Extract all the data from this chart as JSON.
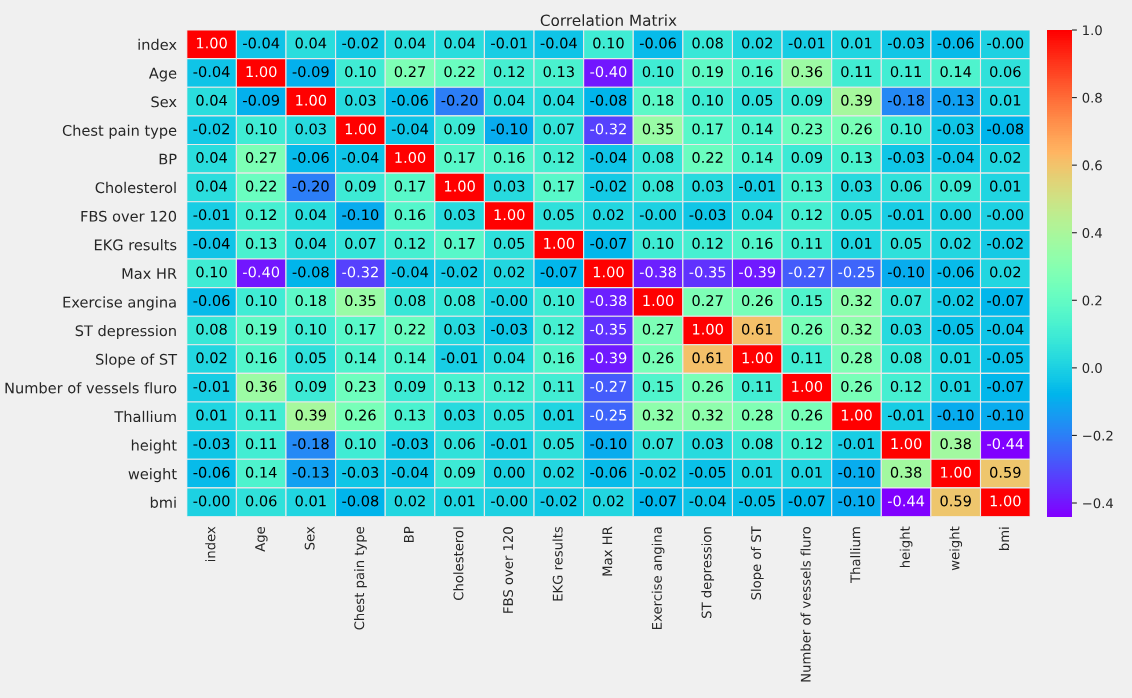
{
  "chart_data": {
    "type": "heatmap",
    "title": "Correlation Matrix",
    "categories": [
      "index",
      "Age",
      "Sex",
      "Chest pain type",
      "BP",
      "Cholesterol",
      "FBS over 120",
      "EKG results",
      "Max HR",
      "Exercise angina",
      "ST depression",
      "Slope of ST",
      "Number of vessels fluro",
      "Thallium",
      "height",
      "weight",
      "bmi"
    ],
    "y_categories": [
      "index",
      "Age",
      "Sex",
      "Chest pain type",
      "BP",
      "Cholesterol",
      "FBS over 120",
      "EKG results",
      "Max HR",
      "Exercise angina",
      "ST depression",
      "Slope of ST",
      "Number of vessels fluro",
      "Thallium",
      "height",
      "weight",
      "bmi"
    ],
    "cells": [
      [
        1.0,
        -0.04,
        0.04,
        -0.02,
        0.04,
        0.04,
        -0.01,
        -0.04,
        0.1,
        -0.06,
        0.08,
        0.02,
        -0.01,
        0.01,
        -0.03,
        -0.06,
        -0.0
      ],
      [
        -0.04,
        1.0,
        -0.09,
        0.1,
        0.27,
        0.22,
        0.12,
        0.13,
        -0.4,
        0.1,
        0.19,
        0.16,
        0.36,
        0.11,
        0.11,
        0.14,
        0.06
      ],
      [
        0.04,
        -0.09,
        1.0,
        0.03,
        -0.06,
        -0.2,
        0.04,
        0.04,
        -0.08,
        0.18,
        0.1,
        0.05,
        0.09,
        0.39,
        -0.18,
        -0.13,
        0.01
      ],
      [
        -0.02,
        0.1,
        0.03,
        1.0,
        -0.04,
        0.09,
        -0.1,
        0.07,
        -0.32,
        0.35,
        0.17,
        0.14,
        0.23,
        0.26,
        0.1,
        -0.03,
        -0.08
      ],
      [
        0.04,
        0.27,
        -0.06,
        -0.04,
        1.0,
        0.17,
        0.16,
        0.12,
        -0.04,
        0.08,
        0.22,
        0.14,
        0.09,
        0.13,
        -0.03,
        -0.04,
        0.02
      ],
      [
        0.04,
        0.22,
        -0.2,
        0.09,
        0.17,
        1.0,
        0.03,
        0.17,
        -0.02,
        0.08,
        0.03,
        -0.01,
        0.13,
        0.03,
        0.06,
        0.09,
        0.01
      ],
      [
        -0.01,
        0.12,
        0.04,
        -0.1,
        0.16,
        0.03,
        1.0,
        0.05,
        0.02,
        -0.0,
        -0.03,
        0.04,
        0.12,
        0.05,
        -0.01,
        0.0,
        -0.0
      ],
      [
        -0.04,
        0.13,
        0.04,
        0.07,
        0.12,
        0.17,
        0.05,
        1.0,
        -0.07,
        0.1,
        0.12,
        0.16,
        0.11,
        0.01,
        0.05,
        0.02,
        -0.02
      ],
      [
        0.1,
        -0.4,
        -0.08,
        -0.32,
        -0.04,
        -0.02,
        0.02,
        -0.07,
        1.0,
        -0.38,
        -0.35,
        -0.39,
        -0.27,
        -0.25,
        -0.1,
        -0.06,
        0.02
      ],
      [
        -0.06,
        0.1,
        0.18,
        0.35,
        0.08,
        0.08,
        -0.0,
        0.1,
        -0.38,
        1.0,
        0.27,
        0.26,
        0.15,
        0.32,
        0.07,
        -0.02,
        -0.07
      ],
      [
        0.08,
        0.19,
        0.1,
        0.17,
        0.22,
        0.03,
        -0.03,
        0.12,
        -0.35,
        0.27,
        1.0,
        0.61,
        0.26,
        0.32,
        0.03,
        -0.05,
        -0.04
      ],
      [
        0.02,
        0.16,
        0.05,
        0.14,
        0.14,
        -0.01,
        0.04,
        0.16,
        -0.39,
        0.26,
        0.61,
        1.0,
        0.11,
        0.28,
        0.08,
        0.01,
        -0.05
      ],
      [
        -0.01,
        0.36,
        0.09,
        0.23,
        0.09,
        0.13,
        0.12,
        0.11,
        -0.27,
        0.15,
        0.26,
        0.11,
        1.0,
        0.26,
        0.12,
        0.01,
        -0.07
      ],
      [
        0.01,
        0.11,
        0.39,
        0.26,
        0.13,
        0.03,
        0.05,
        0.01,
        -0.25,
        0.32,
        0.32,
        0.28,
        0.26,
        1.0,
        -0.01,
        -0.1,
        -0.1
      ],
      [
        -0.03,
        0.11,
        -0.18,
        0.1,
        -0.03,
        0.06,
        -0.01,
        0.05,
        -0.1,
        0.07,
        0.03,
        0.08,
        0.12,
        -0.01,
        1.0,
        0.38,
        -0.44
      ],
      [
        -0.06,
        0.14,
        -0.13,
        -0.03,
        -0.04,
        0.09,
        0.0,
        0.02,
        -0.06,
        -0.02,
        -0.05,
        0.01,
        0.01,
        -0.1,
        0.38,
        1.0,
        0.59
      ],
      [
        -0.0,
        0.06,
        0.01,
        -0.08,
        0.02,
        0.01,
        -0.0,
        -0.02,
        0.02,
        -0.07,
        -0.04,
        -0.05,
        -0.07,
        -0.1,
        -0.44,
        0.59,
        1.0
      ]
    ],
    "cell_labels": [
      [
        "1.00",
        "-0.04",
        "0.04",
        "-0.02",
        "0.04",
        "0.04",
        "-0.01",
        "-0.04",
        "0.10",
        "-0.06",
        "0.08",
        "0.02",
        "-0.01",
        "0.01",
        "-0.03",
        "-0.06",
        "-0.00"
      ],
      [
        "-0.04",
        "1.00",
        "-0.09",
        "0.10",
        "0.27",
        "0.22",
        "0.12",
        "0.13",
        "-0.40",
        "0.10",
        "0.19",
        "0.16",
        "0.36",
        "0.11",
        "0.11",
        "0.14",
        "0.06"
      ],
      [
        "0.04",
        "-0.09",
        "1.00",
        "0.03",
        "-0.06",
        "-0.20",
        "0.04",
        "0.04",
        "-0.08",
        "0.18",
        "0.10",
        "0.05",
        "0.09",
        "0.39",
        "-0.18",
        "-0.13",
        "0.01"
      ],
      [
        "-0.02",
        "0.10",
        "0.03",
        "1.00",
        "-0.04",
        "0.09",
        "-0.10",
        "0.07",
        "-0.32",
        "0.35",
        "0.17",
        "0.14",
        "0.23",
        "0.26",
        "0.10",
        "-0.03",
        "-0.08"
      ],
      [
        "0.04",
        "0.27",
        "-0.06",
        "-0.04",
        "1.00",
        "0.17",
        "0.16",
        "0.12",
        "-0.04",
        "0.08",
        "0.22",
        "0.14",
        "0.09",
        "0.13",
        "-0.03",
        "-0.04",
        "0.02"
      ],
      [
        "0.04",
        "0.22",
        "-0.20",
        "0.09",
        "0.17",
        "1.00",
        "0.03",
        "0.17",
        "-0.02",
        "0.08",
        "0.03",
        "-0.01",
        "0.13",
        "0.03",
        "0.06",
        "0.09",
        "0.01"
      ],
      [
        "-0.01",
        "0.12",
        "0.04",
        "-0.10",
        "0.16",
        "0.03",
        "1.00",
        "0.05",
        "0.02",
        "-0.00",
        "-0.03",
        "0.04",
        "0.12",
        "0.05",
        "-0.01",
        "0.00",
        "-0.00"
      ],
      [
        "-0.04",
        "0.13",
        "0.04",
        "0.07",
        "0.12",
        "0.17",
        "0.05",
        "1.00",
        "-0.07",
        "0.10",
        "0.12",
        "0.16",
        "0.11",
        "0.01",
        "0.05",
        "0.02",
        "-0.02"
      ],
      [
        "0.10",
        "-0.40",
        "-0.08",
        "-0.32",
        "-0.04",
        "-0.02",
        "0.02",
        "-0.07",
        "1.00",
        "-0.38",
        "-0.35",
        "-0.39",
        "-0.27",
        "-0.25",
        "-0.10",
        "-0.06",
        "0.02"
      ],
      [
        "-0.06",
        "0.10",
        "0.18",
        "0.35",
        "0.08",
        "0.08",
        "-0.00",
        "0.10",
        "-0.38",
        "1.00",
        "0.27",
        "0.26",
        "0.15",
        "0.32",
        "0.07",
        "-0.02",
        "-0.07"
      ],
      [
        "0.08",
        "0.19",
        "0.10",
        "0.17",
        "0.22",
        "0.03",
        "-0.03",
        "0.12",
        "-0.35",
        "0.27",
        "1.00",
        "0.61",
        "0.26",
        "0.32",
        "0.03",
        "-0.05",
        "-0.04"
      ],
      [
        "0.02",
        "0.16",
        "0.05",
        "0.14",
        "0.14",
        "-0.01",
        "0.04",
        "0.16",
        "-0.39",
        "0.26",
        "0.61",
        "1.00",
        "0.11",
        "0.28",
        "0.08",
        "0.01",
        "-0.05"
      ],
      [
        "-0.01",
        "0.36",
        "0.09",
        "0.23",
        "0.09",
        "0.13",
        "0.12",
        "0.11",
        "-0.27",
        "0.15",
        "0.26",
        "0.11",
        "1.00",
        "0.26",
        "0.12",
        "0.01",
        "-0.07"
      ],
      [
        "0.01",
        "0.11",
        "0.39",
        "0.26",
        "0.13",
        "0.03",
        "0.05",
        "0.01",
        "-0.25",
        "0.32",
        "0.32",
        "0.28",
        "0.26",
        "1.00",
        "-0.01",
        "-0.10",
        "-0.10"
      ],
      [
        "-0.03",
        "0.11",
        "-0.18",
        "0.10",
        "-0.03",
        "0.06",
        "-0.01",
        "0.05",
        "-0.10",
        "0.07",
        "0.03",
        "0.08",
        "0.12",
        "-0.01",
        "1.00",
        "0.38",
        "-0.44"
      ],
      [
        "-0.06",
        "0.14",
        "-0.13",
        "-0.03",
        "-0.04",
        "0.09",
        "0.00",
        "0.02",
        "-0.06",
        "-0.02",
        "-0.05",
        "0.01",
        "0.01",
        "-0.10",
        "0.38",
        "1.00",
        "0.59"
      ],
      [
        "-0.00",
        "0.06",
        "0.01",
        "-0.08",
        "0.02",
        "0.01",
        "-0.00",
        "-0.02",
        "0.02",
        "-0.07",
        "-0.04",
        "-0.05",
        "-0.07",
        "-0.10",
        "-0.44",
        "0.59",
        "1.00"
      ]
    ],
    "data_labels": true,
    "clim": [
      -0.44,
      1.0
    ],
    "cticks": [
      {
        "value": -0.4,
        "label": "−0.4"
      },
      {
        "value": -0.2,
        "label": "−0.2"
      },
      {
        "value": 0.0,
        "label": "0.0"
      },
      {
        "value": 0.2,
        "label": "0.2"
      },
      {
        "value": 0.4,
        "label": "0.4"
      },
      {
        "value": 0.6,
        "label": "0.6"
      },
      {
        "value": 0.8,
        "label": "0.8"
      },
      {
        "value": 1.0,
        "label": "1.0"
      }
    ]
  }
}
